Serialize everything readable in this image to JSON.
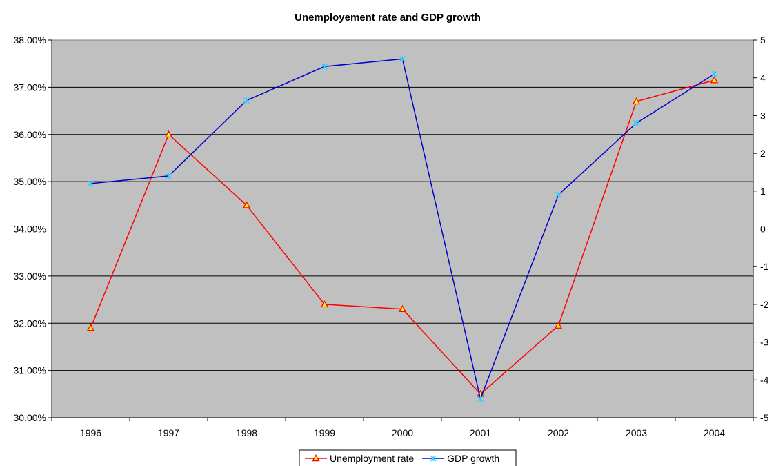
{
  "chart_data": {
    "type": "line",
    "title": "Unemployement rate and GDP growth",
    "xlabel": "",
    "ylabel": "",
    "categories": [
      "1996",
      "1997",
      "1998",
      "1999",
      "2000",
      "2001",
      "2002",
      "2003",
      "2004"
    ],
    "y_left": {
      "min": 30,
      "max": 38,
      "step": 1,
      "tick_labels": [
        "30.00%",
        "31.00%",
        "32.00%",
        "33.00%",
        "34.00%",
        "35.00%",
        "36.00%",
        "37.00%",
        "38.00%"
      ]
    },
    "y_right": {
      "min": -5,
      "max": 5,
      "step": 1,
      "tick_labels": [
        "-5",
        "-4",
        "-3",
        "-2",
        "-1",
        "0",
        "1",
        "2",
        "3",
        "4",
        "5"
      ]
    },
    "series": [
      {
        "name": "Unemployment rate",
        "axis": "left",
        "color": "#ff0000",
        "marker": "triangle",
        "marker_fill": "#ffff00",
        "values": [
          31.9,
          36.0,
          34.5,
          32.4,
          32.3,
          30.5,
          31.95,
          36.7,
          37.15
        ]
      },
      {
        "name": "GDP growth",
        "axis": "right",
        "color": "#0000cc",
        "marker": "x",
        "marker_color": "#33ccff",
        "values": [
          1.2,
          1.4,
          3.4,
          4.3,
          4.5,
          -4.5,
          0.9,
          2.8,
          4.1
        ]
      }
    ],
    "grid": true,
    "plot_background": "#c0c0c0",
    "legend_position": "bottom"
  }
}
